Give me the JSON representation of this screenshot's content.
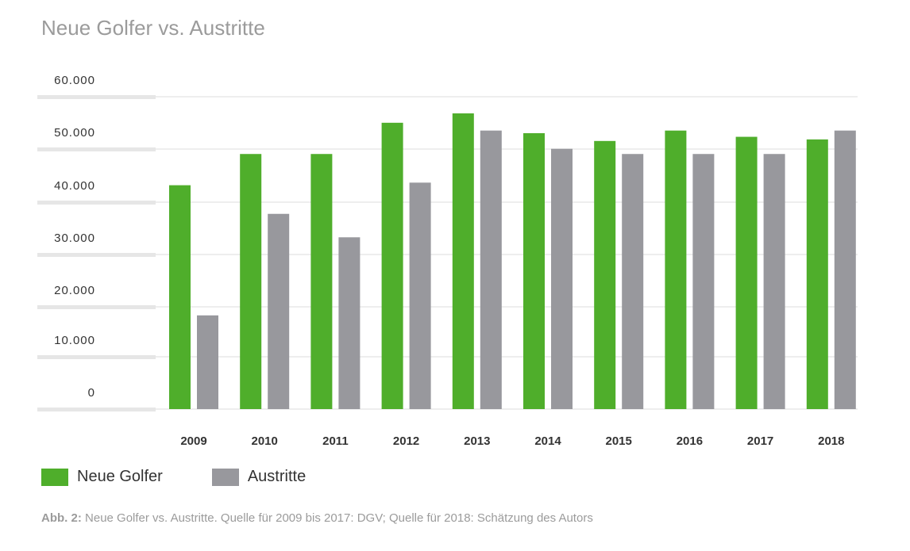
{
  "title": "Neue Golfer vs. Austritte",
  "chart_data": {
    "type": "bar",
    "categories": [
      "2009",
      "2010",
      "2011",
      "2012",
      "2013",
      "2014",
      "2015",
      "2016",
      "2017",
      "2018"
    ],
    "series": [
      {
        "name": "Neue Golfer",
        "color": "#4fae2b",
        "values": [
          43000,
          49000,
          49000,
          55000,
          56800,
          53000,
          51500,
          53500,
          52300,
          51800
        ]
      },
      {
        "name": "Austritte",
        "color": "#98989d",
        "values": [
          18000,
          37500,
          33000,
          43500,
          53500,
          50000,
          49000,
          49000,
          49000,
          53500
        ]
      }
    ],
    "yticks": [
      "60.000",
      "50.000",
      "40.000",
      "30.000",
      "20.000",
      "10.000",
      "0"
    ],
    "ylim": [
      0,
      60000
    ],
    "grid": true,
    "legend": "bottom-left"
  },
  "caption": {
    "prefix": "Abb. 2:",
    "text": "Neue Golfer vs. Austritte. Quelle für 2009 bis 2017: DGV; Quelle für 2018: Schätzung des Autors"
  }
}
